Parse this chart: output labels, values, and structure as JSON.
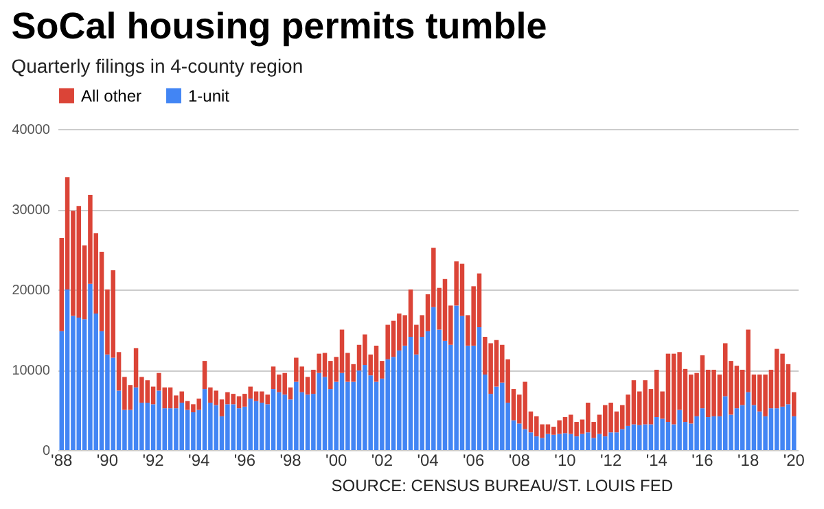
{
  "chart_data": {
    "type": "bar",
    "title": "SoCal housing permits tumble",
    "subtitle": "Quarterly filings in 4-county region",
    "categories": [
      "'88",
      null,
      null,
      null,
      null,
      null,
      null,
      null,
      "'90",
      null,
      null,
      null,
      null,
      null,
      null,
      null,
      "'92",
      null,
      null,
      null,
      null,
      null,
      null,
      null,
      "'94",
      null,
      null,
      null,
      null,
      null,
      null,
      null,
      "'96",
      null,
      null,
      null,
      null,
      null,
      null,
      null,
      "'98",
      null,
      null,
      null,
      null,
      null,
      null,
      null,
      "'00",
      null,
      null,
      null,
      null,
      null,
      null,
      null,
      "'02",
      null,
      null,
      null,
      null,
      null,
      null,
      null,
      "'04",
      null,
      null,
      null,
      null,
      null,
      null,
      null,
      "'06",
      null,
      null,
      null,
      null,
      null,
      null,
      null,
      "'08",
      null,
      null,
      null,
      null,
      null,
      null,
      null,
      "'10",
      null,
      null,
      null,
      null,
      null,
      null,
      null,
      "'12",
      null,
      null,
      null,
      null,
      null,
      null,
      null,
      "'14",
      null,
      null,
      null,
      null,
      null,
      null,
      null,
      "'16",
      null,
      null,
      null,
      null,
      null,
      null,
      null,
      "'18",
      null,
      null,
      null,
      null,
      null,
      null,
      null,
      "'20"
    ],
    "stacked": true,
    "series": [
      {
        "name": "1-unit",
        "color": "#4285f4",
        "values": [
          14800,
          20000,
          16700,
          16500,
          16300,
          20700,
          17000,
          14800,
          11900,
          11500,
          7400,
          5000,
          5000,
          7800,
          5900,
          5900,
          5700,
          7400,
          5200,
          5200,
          5200,
          5900,
          5000,
          4700,
          5000,
          7600,
          5900,
          5600,
          4200,
          5700,
          5700,
          5200,
          5400,
          6400,
          6100,
          5900,
          5700,
          7600,
          7200,
          6900,
          6300,
          8500,
          7200,
          6900,
          7000,
          9600,
          9100,
          7600,
          8500,
          9600,
          8500,
          8500,
          9900,
          10600,
          9300,
          8500,
          8900,
          11300,
          11600,
          12400,
          13000,
          14100,
          11900,
          14100,
          14800,
          17800,
          15000,
          13600,
          13100,
          18000,
          16700,
          13000,
          13000,
          15300,
          9400,
          7000,
          7900,
          8400,
          5900,
          3700,
          3300,
          2600,
          2200,
          1700,
          1500,
          2000,
          1900,
          2000,
          2100,
          2000,
          1700,
          2000,
          2200,
          1500,
          2000,
          1700,
          2200,
          2200,
          2600,
          3000,
          3200,
          3100,
          3200,
          3200,
          4100,
          3900,
          3500,
          3200,
          5000,
          3500,
          3300,
          4200,
          5200,
          4100,
          4200,
          4200,
          6700,
          4400,
          5200,
          5600,
          7200,
          5600,
          4800,
          4200,
          5200,
          5200,
          5400,
          5700,
          4200
        ]
      },
      {
        "name": "All other",
        "color": "#db4437",
        "values": [
          11600,
          14000,
          13100,
          13900,
          9200,
          11100,
          10000,
          9900,
          8100,
          10900,
          4800,
          4100,
          3100,
          4900,
          3200,
          2800,
          2200,
          2200,
          2600,
          2600,
          1600,
          1400,
          1100,
          1000,
          1400,
          3500,
          1900,
          1800,
          2100,
          1500,
          1300,
          1500,
          1600,
          1500,
          1200,
          1400,
          1200,
          2800,
          2200,
          2700,
          1500,
          3000,
          3200,
          2200,
          3000,
          2400,
          3000,
          3500,
          3100,
          5400,
          3600,
          2200,
          3200,
          3800,
          2600,
          4500,
          2200,
          4300,
          4500,
          4600,
          3800,
          5900,
          3700,
          2700,
          4600,
          7400,
          5200,
          7700,
          4900,
          5500,
          6500,
          3800,
          7400,
          6700,
          4700,
          6300,
          5800,
          4700,
          5400,
          3900,
          3600,
          5900,
          2600,
          2500,
          1700,
          1200,
          1000,
          1700,
          2000,
          2400,
          1800,
          1800,
          3700,
          2000,
          2400,
          3900,
          3700,
          2600,
          3000,
          3900,
          5500,
          4200,
          5500,
          4400,
          5900,
          3400,
          8500,
          8800,
          7200,
          6600,
          6100,
          5400,
          6600,
          5900,
          5800,
          5200,
          6600,
          6700,
          5300,
          4400,
          7800,
          3800,
          4600,
          5200,
          4800,
          7400,
          6600,
          5000,
          3000
        ]
      }
    ],
    "ylim": [
      0,
      40000
    ],
    "yticks": [
      0,
      10000,
      20000,
      30000,
      40000
    ],
    "grid": "y",
    "legend": "top",
    "annotations": [
      "SOURCE: CENSUS BUREAU/ST. LOUIS FED"
    ]
  }
}
